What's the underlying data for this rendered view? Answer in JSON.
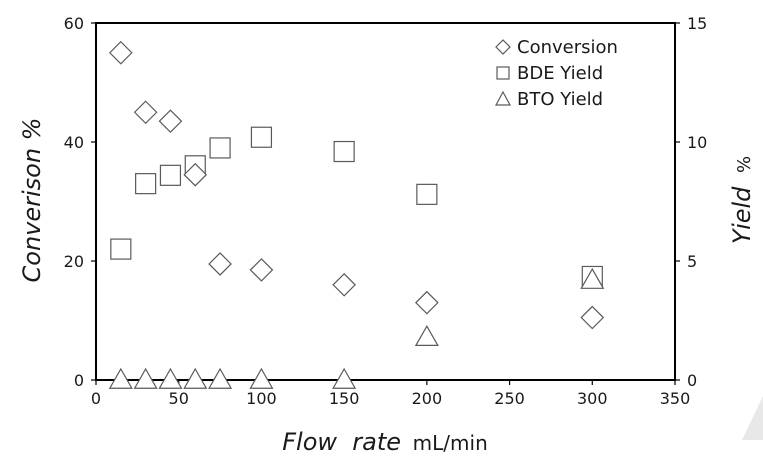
{
  "chart_data": {
    "type": "scatter",
    "x_axis": {
      "label_italic": "Flow  rate",
      "label_unit": "mL/min",
      "range": [
        0,
        350
      ],
      "ticks": [
        0,
        50,
        100,
        150,
        200,
        250,
        300,
        350
      ]
    },
    "y_axis_left": {
      "label": "Converison %",
      "range": [
        0,
        60
      ],
      "ticks": [
        0,
        20,
        40,
        60
      ]
    },
    "y_axis_right": {
      "label_italic": "Yield",
      "label_unit": "%",
      "range": [
        0,
        15
      ],
      "ticks": [
        0,
        5,
        10,
        15
      ]
    },
    "grid": false,
    "legend": {
      "placement": "top-right"
    },
    "series": [
      {
        "name": "Conversion",
        "marker": "diamond",
        "axis": "left",
        "points": [
          {
            "x": 15,
            "y": 55
          },
          {
            "x": 30,
            "y": 45
          },
          {
            "x": 45,
            "y": 43.5
          },
          {
            "x": 60,
            "y": 34.5
          },
          {
            "x": 75,
            "y": 19.5
          },
          {
            "x": 100,
            "y": 18.5
          },
          {
            "x": 150,
            "y": 16
          },
          {
            "x": 200,
            "y": 13
          },
          {
            "x": 300,
            "y": 10.5
          }
        ]
      },
      {
        "name": "BDE Yield",
        "marker": "square",
        "axis": "right",
        "points": [
          {
            "x": 15,
            "y": 5.5
          },
          {
            "x": 30,
            "y": 8.25
          },
          {
            "x": 45,
            "y": 8.6
          },
          {
            "x": 60,
            "y": 9
          },
          {
            "x": 75,
            "y": 9.75
          },
          {
            "x": 100,
            "y": 10.2
          },
          {
            "x": 150,
            "y": 9.6
          },
          {
            "x": 200,
            "y": 7.8
          },
          {
            "x": 300,
            "y": 4.35
          }
        ]
      },
      {
        "name": "BTO Yield",
        "marker": "triangle",
        "axis": "right",
        "points": [
          {
            "x": 15,
            "y": 0
          },
          {
            "x": 30,
            "y": 0
          },
          {
            "x": 45,
            "y": 0
          },
          {
            "x": 60,
            "y": 0
          },
          {
            "x": 75,
            "y": 0
          },
          {
            "x": 100,
            "y": 0
          },
          {
            "x": 150,
            "y": 0
          },
          {
            "x": 200,
            "y": 1.8
          },
          {
            "x": 300,
            "y": 4.2
          }
        ]
      }
    ]
  }
}
